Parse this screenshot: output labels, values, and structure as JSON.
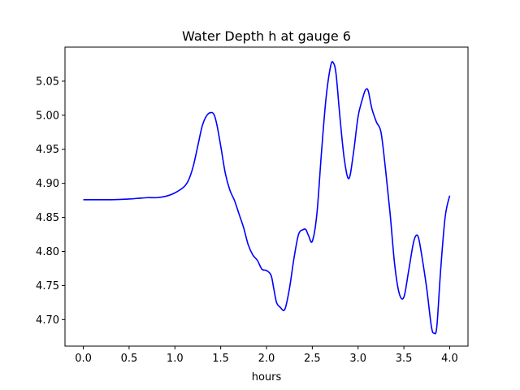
{
  "chart_data": {
    "type": "line",
    "title": "Water Depth h at gauge 6",
    "xlabel": "hours",
    "ylabel": "",
    "xlim": [
      -0.2,
      4.2
    ],
    "ylim": [
      4.661,
      5.1
    ],
    "x_ticks": [
      0.0,
      0.5,
      1.0,
      1.5,
      2.0,
      2.5,
      3.0,
      3.5,
      4.0
    ],
    "x_tick_labels": [
      "0.0",
      "0.5",
      "1.0",
      "1.5",
      "2.0",
      "2.5",
      "3.0",
      "3.5",
      "4.0"
    ],
    "y_ticks": [
      4.7,
      4.75,
      4.8,
      4.85,
      4.9,
      4.95,
      5.0,
      5.05
    ],
    "y_tick_labels": [
      "4.70",
      "4.75",
      "4.80",
      "4.85",
      "4.90",
      "4.95",
      "5.00",
      "5.05"
    ],
    "grid": false,
    "series": [
      {
        "color": "#0000ff",
        "x": [
          0.0,
          0.3,
          0.5,
          0.6,
          0.7,
          0.8,
          0.9,
          1.0,
          1.1,
          1.15,
          1.2,
          1.25,
          1.3,
          1.35,
          1.4,
          1.43,
          1.46,
          1.5,
          1.55,
          1.6,
          1.65,
          1.7,
          1.75,
          1.8,
          1.85,
          1.9,
          1.95,
          2.0,
          2.05,
          2.08,
          2.11,
          2.15,
          2.2,
          2.25,
          2.3,
          2.35,
          2.4,
          2.43,
          2.46,
          2.5,
          2.55,
          2.6,
          2.65,
          2.7,
          2.73,
          2.76,
          2.8,
          2.85,
          2.9,
          2.95,
          3.0,
          3.05,
          3.08,
          3.11,
          3.15,
          3.2,
          3.25,
          3.3,
          3.35,
          3.4,
          3.45,
          3.5,
          3.55,
          3.6,
          3.63,
          3.66,
          3.7,
          3.75,
          3.8,
          3.83,
          3.86,
          3.9,
          3.95,
          4.0
        ],
        "y": [
          4.876,
          4.876,
          4.877,
          4.878,
          4.879,
          4.879,
          4.881,
          4.886,
          4.895,
          4.905,
          4.925,
          4.955,
          4.985,
          5.0,
          5.004,
          5.0,
          4.985,
          4.955,
          4.915,
          4.89,
          4.875,
          4.855,
          4.835,
          4.81,
          4.795,
          4.787,
          4.774,
          4.772,
          4.765,
          4.745,
          4.725,
          4.718,
          4.715,
          4.745,
          4.79,
          4.825,
          4.832,
          4.832,
          4.823,
          4.815,
          4.855,
          4.945,
          5.025,
          5.072,
          5.077,
          5.06,
          5.0,
          4.935,
          4.907,
          4.945,
          4.998,
          5.025,
          5.037,
          5.036,
          5.01,
          4.99,
          4.975,
          4.92,
          4.855,
          4.78,
          4.738,
          4.733,
          4.77,
          4.81,
          4.823,
          4.82,
          4.79,
          4.745,
          4.69,
          4.68,
          4.69,
          4.77,
          4.85,
          4.882
        ]
      }
    ]
  }
}
